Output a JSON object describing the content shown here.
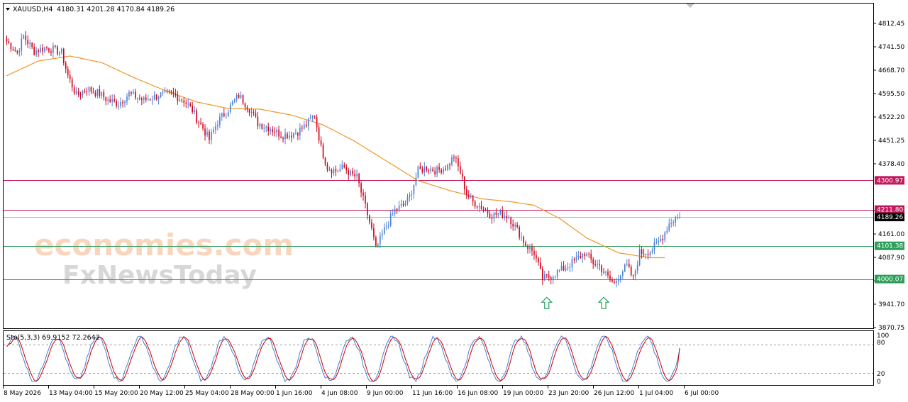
{
  "header": {
    "symbol": "XAUUSD,H4",
    "ohlc": "4180.31 4201.28 4170.84 4189.26"
  },
  "oscillator": {
    "label": "Sto(5,3,3) 69.9152 72.2642",
    "levels": [
      "100",
      "80",
      "20",
      "0"
    ],
    "main_color": "#4a7fd6",
    "signal_color": "#cc0000"
  },
  "watermark": {
    "brand1": "economies.com",
    "brand2": "FxNewsToday"
  },
  "colors": {
    "bull": "#4a7fd6",
    "bear": "#d0021b",
    "ma": "#f0962a",
    "resistance": "#c2185b",
    "support": "#2e9e5a",
    "arrow": "#27a35a"
  },
  "chart_data": {
    "type": "candlestick",
    "symbol": "XAUUSD",
    "timeframe": "H4",
    "current_price": "4189.26",
    "y_ticks": [
      "4812.45",
      "4741.50",
      "4668.70",
      "4595.50",
      "4522.20",
      "4451.25",
      "4378.40",
      "4231.95",
      "4161.00",
      "4087.90",
      "4014.80",
      "3941.70",
      "3870.75"
    ],
    "x_ticks": [
      "8 May 2026",
      "13 May 04:00",
      "15 May 20:00",
      "20 May 12:00",
      "25 May 04:00",
      "28 May 00:00",
      "1 Jun 16:00",
      "4 Jun 08:00",
      "9 Jun 00:00",
      "11 Jun 16:00",
      "16 Jun 08:00",
      "19 Jun 00:00",
      "23 Jun 20:00",
      "26 Jun 12:00",
      "1 Jul 04:00",
      "6 Jul 00:00"
    ],
    "horizontal_levels": [
      {
        "value": 4300.97,
        "label": "4300.97",
        "type": "resistance"
      },
      {
        "value": 4211.8,
        "label": "4211.80",
        "type": "resistance"
      },
      {
        "value": 4101.38,
        "label": "4101.38",
        "type": "support"
      },
      {
        "value": 4000.07,
        "label": "4000.07",
        "type": "support"
      }
    ],
    "price_path": [
      [
        0,
        4725
      ],
      [
        5,
        4690
      ],
      [
        8,
        4740
      ],
      [
        13,
        4695
      ],
      [
        18,
        4705
      ],
      [
        22,
        4700
      ],
      [
        26,
        4690
      ],
      [
        29,
        4620
      ],
      [
        33,
        4560
      ],
      [
        38,
        4580
      ],
      [
        44,
        4565
      ],
      [
        48,
        4545
      ],
      [
        53,
        4535
      ],
      [
        58,
        4565
      ],
      [
        65,
        4545
      ],
      [
        72,
        4560
      ],
      [
        78,
        4565
      ],
      [
        84,
        4545
      ],
      [
        88,
        4515
      ],
      [
        90,
        4490
      ],
      [
        93,
        4460
      ],
      [
        96,
        4425
      ],
      [
        100,
        4480
      ],
      [
        104,
        4510
      ],
      [
        110,
        4560
      ],
      [
        115,
        4520
      ],
      [
        119,
        4475
      ],
      [
        125,
        4460
      ],
      [
        130,
        4440
      ],
      [
        134,
        4440
      ],
      [
        138,
        4450
      ],
      [
        142,
        4470
      ],
      [
        146,
        4500
      ],
      [
        149,
        4400
      ],
      [
        152,
        4340
      ],
      [
        156,
        4330
      ],
      [
        160,
        4340
      ],
      [
        163,
        4320
      ],
      [
        166,
        4310
      ],
      [
        170,
        4220
      ],
      [
        173,
        4150
      ],
      [
        175,
        4090
      ],
      [
        179,
        4150
      ],
      [
        184,
        4210
      ],
      [
        188,
        4225
      ],
      [
        191,
        4250
      ],
      [
        195,
        4330
      ],
      [
        199,
        4340
      ],
      [
        204,
        4330
      ],
      [
        209,
        4345
      ],
      [
        212,
        4375
      ],
      [
        215,
        4325
      ],
      [
        218,
        4260
      ],
      [
        221,
        4235
      ],
      [
        225,
        4220
      ],
      [
        230,
        4195
      ],
      [
        234,
        4200
      ],
      [
        238,
        4190
      ],
      [
        242,
        4150
      ],
      [
        246,
        4105
      ],
      [
        250,
        4080
      ],
      [
        254,
        4000
      ],
      [
        258,
        4010
      ],
      [
        262,
        4025
      ],
      [
        266,
        4040
      ],
      [
        270,
        4060
      ],
      [
        274,
        4080
      ],
      [
        278,
        4050
      ],
      [
        281,
        4040
      ],
      [
        285,
        4005
      ],
      [
        288,
        3985
      ],
      [
        291,
        4020
      ],
      [
        294,
        4040
      ],
      [
        297,
        4000
      ],
      [
        300,
        4080
      ],
      [
        305,
        4085
      ],
      [
        308,
        4105
      ],
      [
        311,
        4130
      ],
      [
        314,
        4170
      ],
      [
        317,
        4185
      ],
      [
        319,
        4189.26
      ]
    ],
    "ma_path": [
      [
        0,
        4620
      ],
      [
        15,
        4665
      ],
      [
        30,
        4680
      ],
      [
        45,
        4660
      ],
      [
        60,
        4615
      ],
      [
        75,
        4575
      ],
      [
        90,
        4540
      ],
      [
        105,
        4520
      ],
      [
        120,
        4518
      ],
      [
        135,
        4500
      ],
      [
        150,
        4470
      ],
      [
        165,
        4420
      ],
      [
        180,
        4360
      ],
      [
        195,
        4300
      ],
      [
        210,
        4270
      ],
      [
        225,
        4245
      ],
      [
        240,
        4235
      ],
      [
        250,
        4225
      ],
      [
        262,
        4185
      ],
      [
        275,
        4125
      ],
      [
        290,
        4080
      ],
      [
        305,
        4065
      ],
      [
        312,
        4065
      ]
    ],
    "stochastic_main_fast_period_bars": 20,
    "stochastic_current": {
      "main": 69.9152,
      "signal": 72.2642
    },
    "stochastic_levels": [
      80,
      20
    ],
    "signal_arrows": [
      {
        "bar": 256,
        "price": 3925,
        "direction": "up"
      },
      {
        "bar": 283,
        "price": 3925,
        "direction": "up"
      }
    ],
    "total_bars": 320,
    "ylim": [
      3850,
      4840
    ],
    "osc_ylim": [
      0,
      100
    ]
  }
}
